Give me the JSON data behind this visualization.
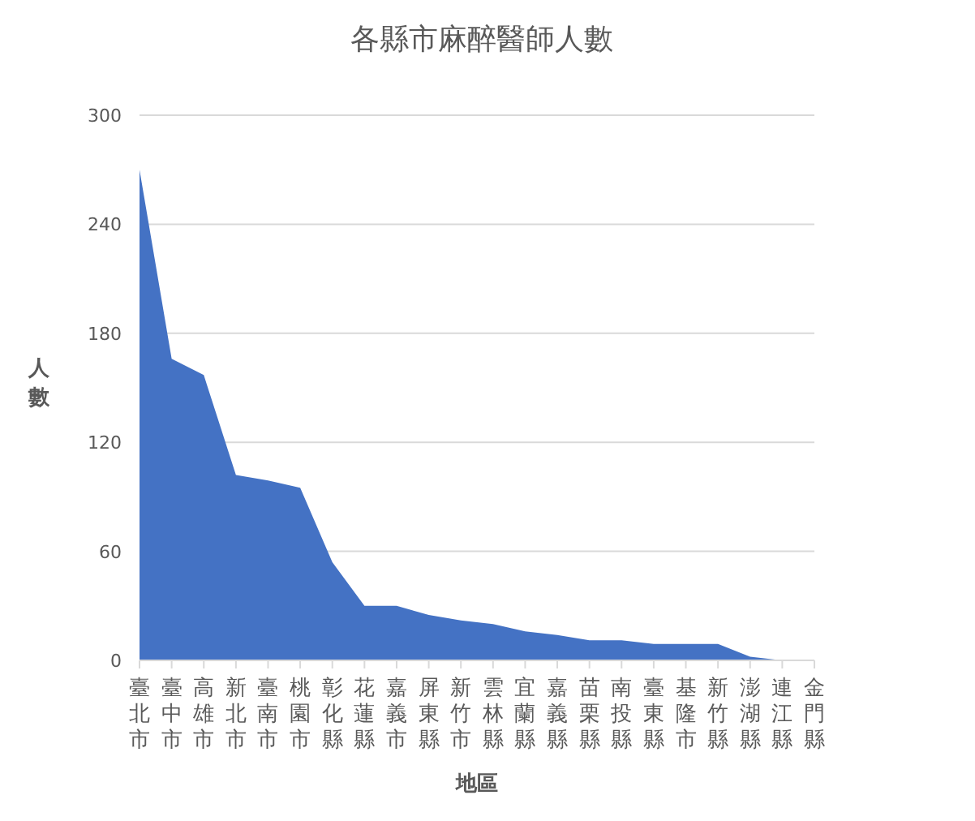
{
  "chart_data": {
    "type": "area",
    "title": "各縣市麻醉醫師人數",
    "xlabel": "地區",
    "ylabel": "人數",
    "categories": [
      "臺北市",
      "臺中市",
      "高雄市",
      "新北市",
      "臺南市",
      "桃園市",
      "彰化縣",
      "花蓮縣",
      "嘉義市",
      "屏東縣",
      "新竹市",
      "雲林縣",
      "宜蘭縣",
      "嘉義縣",
      "苗栗縣",
      "南投縣",
      "臺東縣",
      "基隆市",
      "新竹縣",
      "澎湖縣",
      "連江縣",
      "金門縣"
    ],
    "values": [
      270,
      166,
      157,
      102,
      99,
      95,
      54,
      30,
      30,
      25,
      22,
      20,
      16,
      14,
      11,
      11,
      9,
      9,
      9,
      2,
      0,
      0
    ],
    "color": "#4472c4",
    "ylim": [
      0,
      300
    ],
    "yticks": [
      0,
      60,
      120,
      180,
      240,
      300
    ],
    "grid": "y"
  }
}
